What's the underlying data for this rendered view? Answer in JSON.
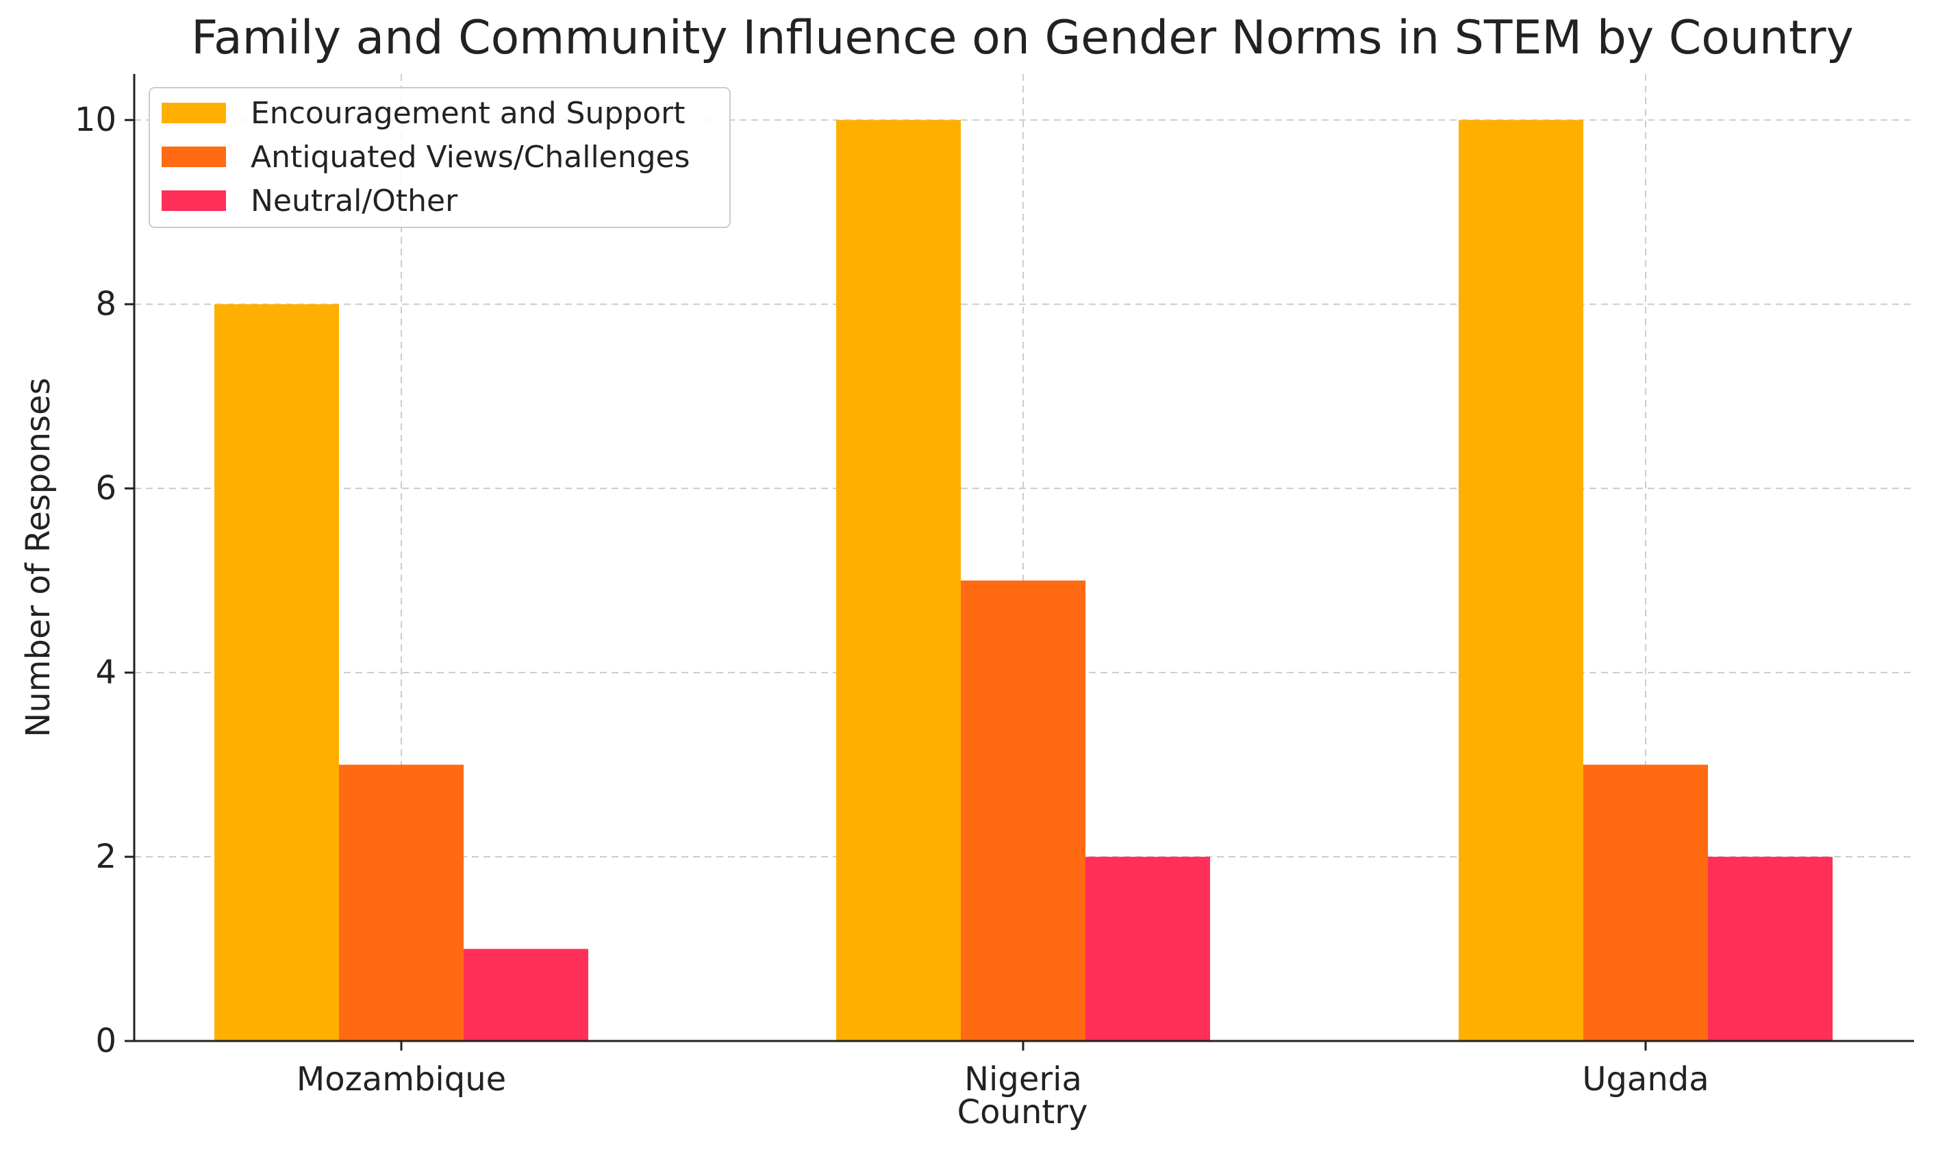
{
  "chart_data": {
    "type": "bar",
    "title": "Family and Community Influence on Gender Norms in STEM by Country",
    "xlabel": "Country",
    "ylabel": "Number of Responses",
    "categories": [
      "Mozambique",
      "Nigeria",
      "Uganda"
    ],
    "series": [
      {
        "name": "Encouragement and Support",
        "color": "#FFAF00",
        "values": [
          8,
          10,
          10
        ]
      },
      {
        "name": "Antiquated Views/Challenges",
        "color": "#FF6A12",
        "values": [
          3,
          5,
          3
        ]
      },
      {
        "name": "Neutral/Other",
        "color": "#FF2F57",
        "values": [
          1,
          2,
          2
        ]
      }
    ],
    "ylim": [
      0,
      10.5
    ],
    "yticks": [
      0,
      2,
      4,
      6,
      8,
      10
    ],
    "grid": true,
    "legend_position": "top-left"
  }
}
